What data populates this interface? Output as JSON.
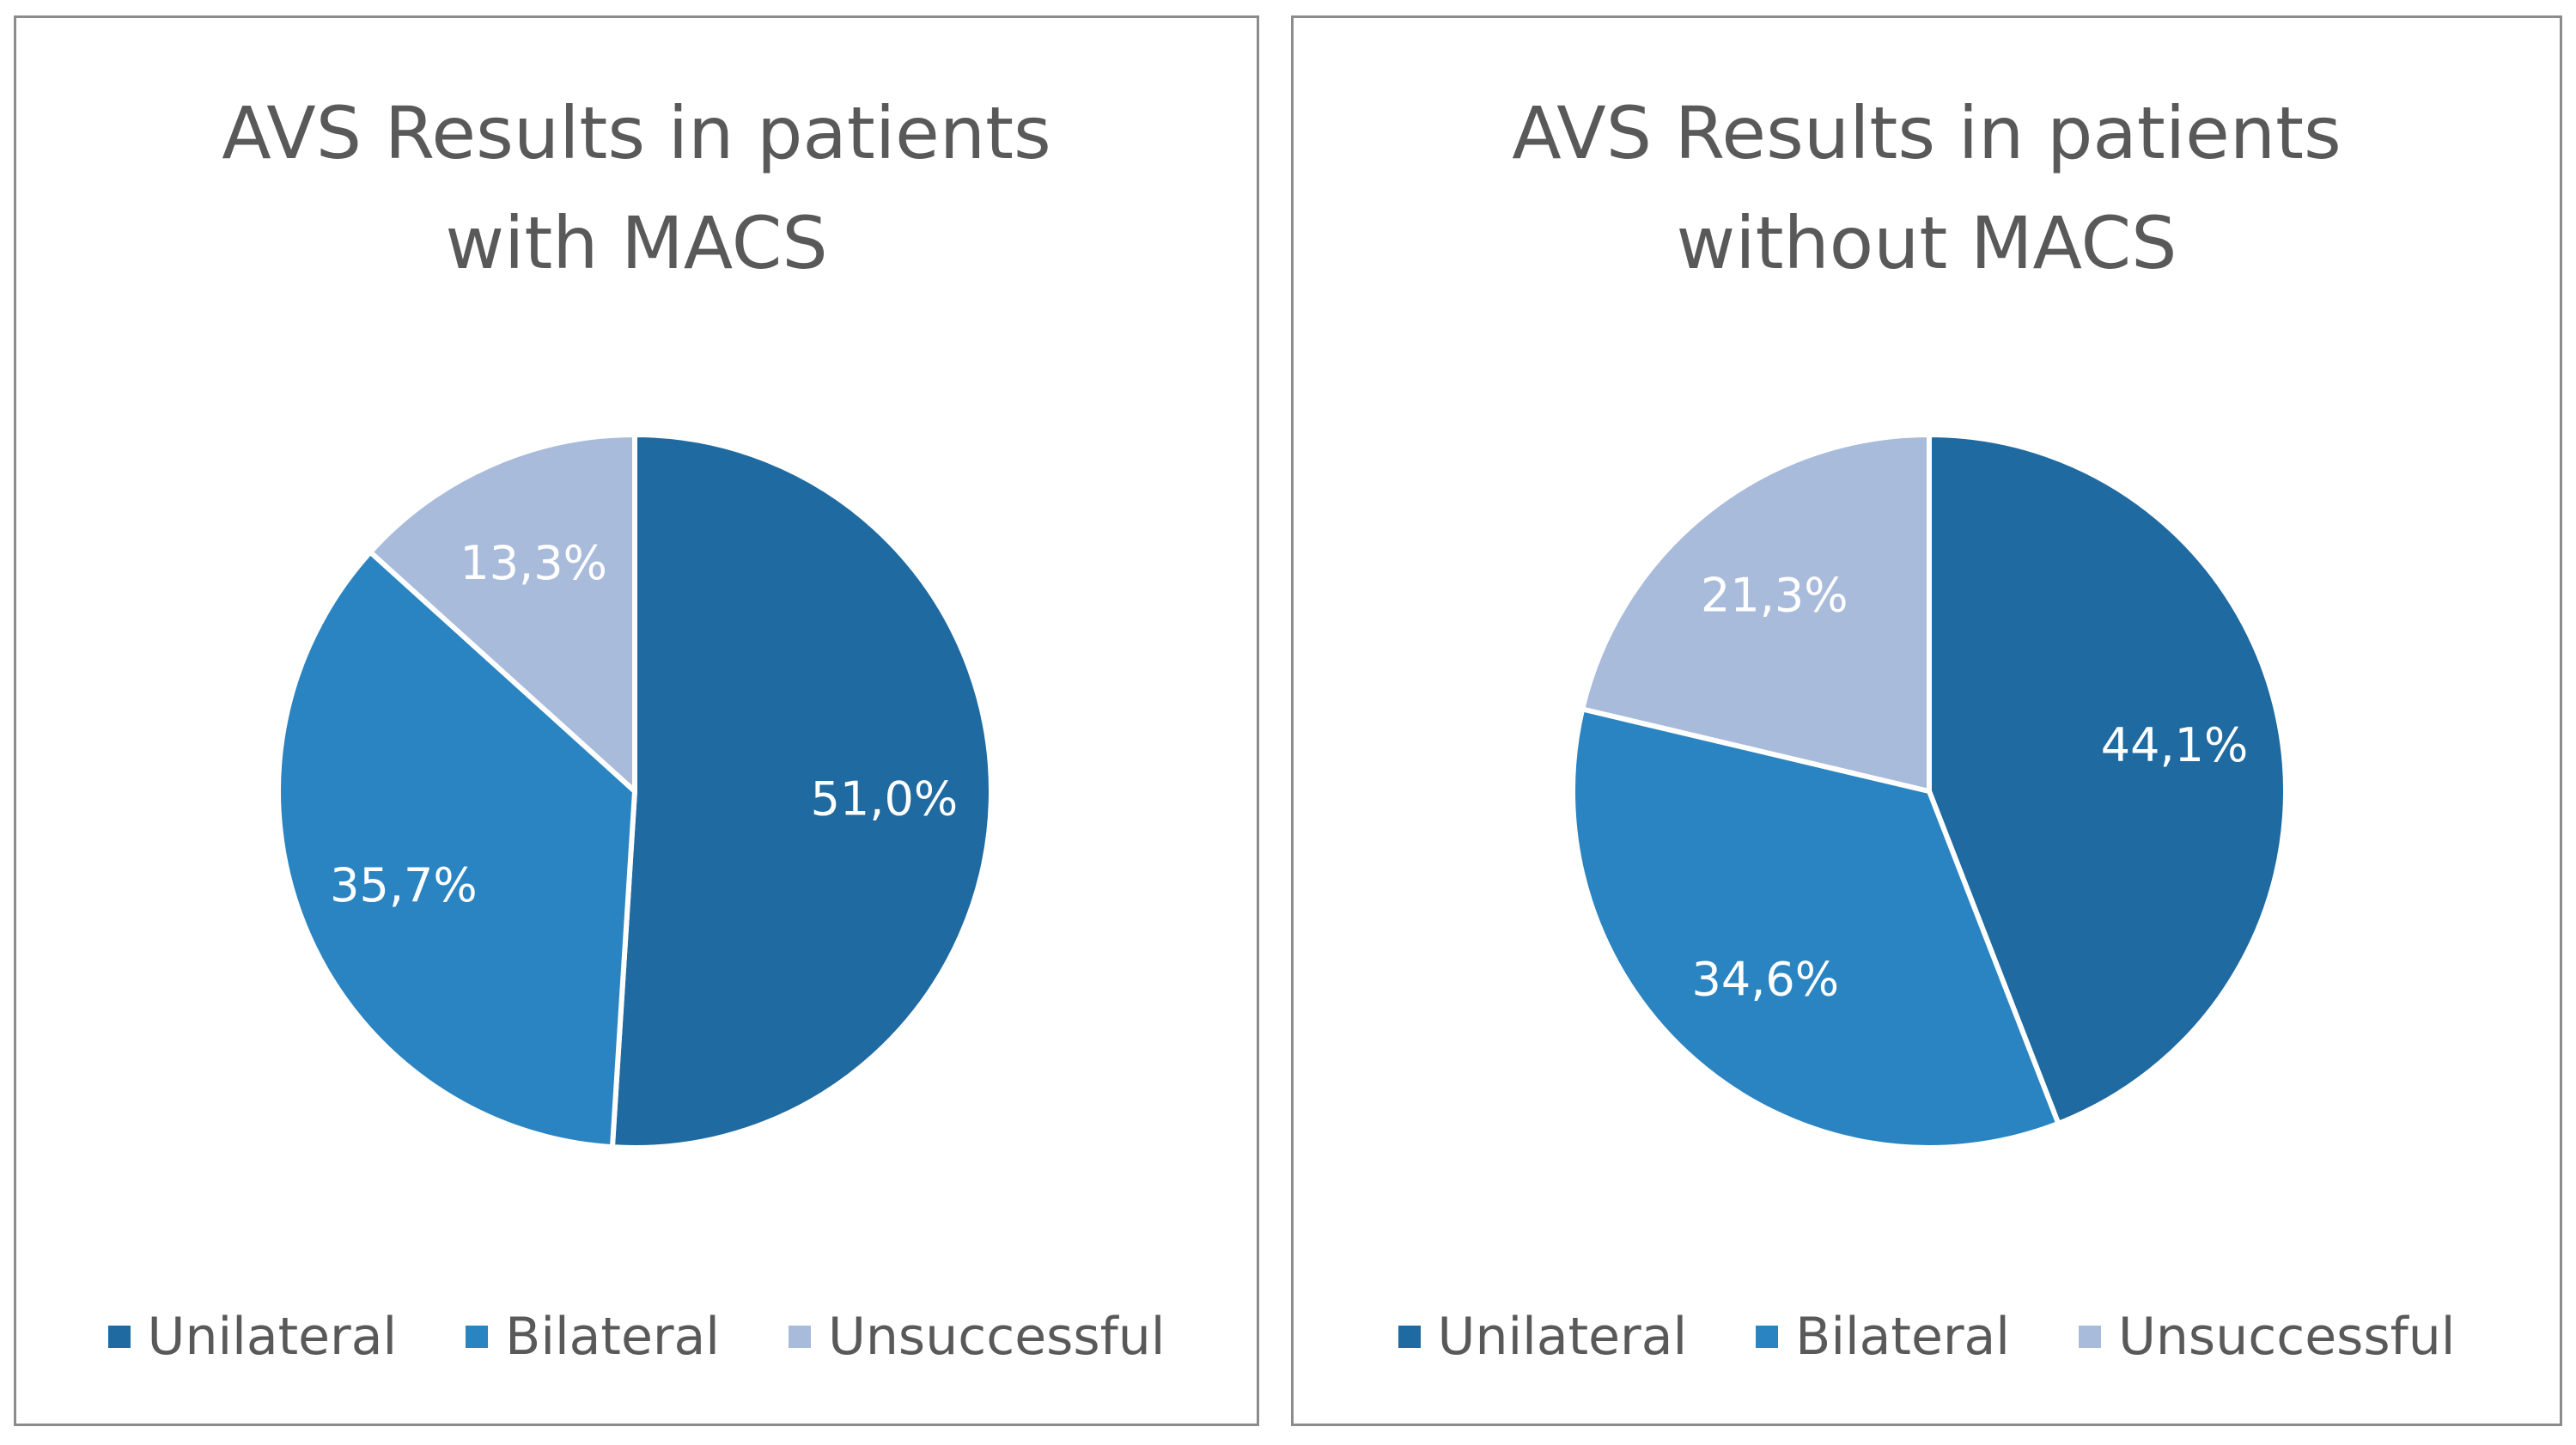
{
  "colors": {
    "unilateral": "#1f6aa1",
    "bilateral": "#2a84c1",
    "unsuccessful": "#a9bbdb"
  },
  "chart_data": [
    {
      "type": "pie",
      "title_lines": [
        "AVS Results in patients",
        "with MACS"
      ],
      "categories": [
        "Unilateral",
        "Bilateral",
        "Unsuccessful"
      ],
      "values": [
        51.0,
        35.7,
        13.3
      ],
      "value_labels": [
        "51,0%",
        "35,7%",
        "13,3%"
      ],
      "legend": [
        "Unilateral",
        "Bilateral",
        "Unsuccessful"
      ],
      "legend_position": "bottom"
    },
    {
      "type": "pie",
      "title_lines": [
        "AVS Results in patients",
        "without MACS"
      ],
      "categories": [
        "Unilateral",
        "Bilateral",
        "Unsuccessful"
      ],
      "values": [
        44.1,
        34.6,
        21.3
      ],
      "value_labels": [
        "44,1%",
        "34,6%",
        "21,3%"
      ],
      "legend": [
        "Unilateral",
        "Bilateral",
        "Unsuccessful"
      ],
      "legend_position": "bottom"
    }
  ]
}
